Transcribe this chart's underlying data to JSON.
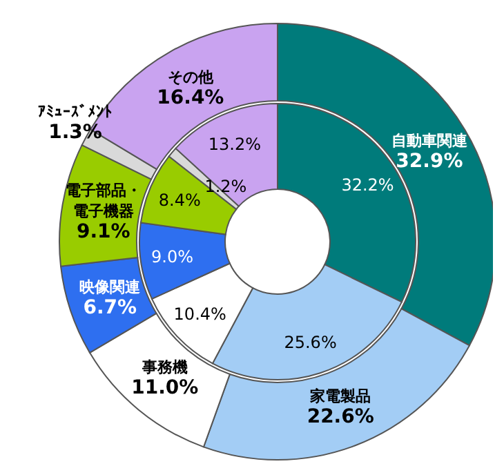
{
  "chart_data": {
    "type": "donut",
    "categories": [
      "自動車関連",
      "家電製品",
      "事務機",
      "映像関連",
      "電子部品・電子機器",
      "ｱﾐｭｰｽﾞﾒﾝﾄ",
      "その他"
    ],
    "series": [
      {
        "values": [
          32.9,
          22.6,
          11.0,
          6.7,
          9.1,
          1.3,
          16.4
        ],
        "value_labels": [
          "32.9%",
          "22.6%",
          "11.0%",
          "6.7%",
          "9.1%",
          "1.3%",
          "16.4%"
        ],
        "colors": [
          "#007b7b",
          "#a3cdf5",
          "#ffffff",
          "#2e6ff0",
          "#99cc00",
          "#d9d9d9",
          "#c9a3f0"
        ]
      },
      {
        "values": [
          32.2,
          25.6,
          10.4,
          9.0,
          8.4,
          1.2,
          13.2
        ],
        "value_labels": [
          "32.2%",
          "25.6%",
          "10.4%",
          "9.0%",
          "8.4%",
          "1.2%",
          "13.2%"
        ],
        "colors": [
          "#007b7b",
          "#a3cdf5",
          "#ffffff",
          "#2e6ff0",
          "#99cc00",
          "#d9d9d9",
          "#c9a3f0"
        ]
      }
    ]
  }
}
